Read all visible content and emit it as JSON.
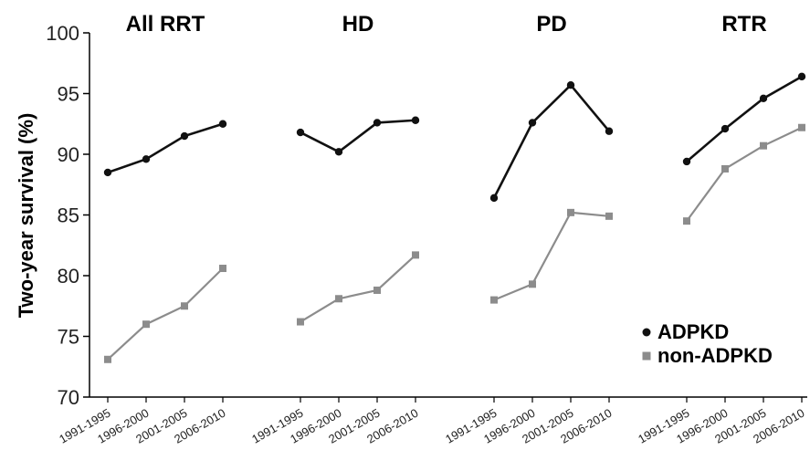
{
  "chart_data": {
    "type": "line",
    "ylabel": "Two-year survival (%)",
    "ylim": [
      70,
      100
    ],
    "yticks": [
      "70",
      "75",
      "80",
      "85",
      "90",
      "95",
      "100"
    ],
    "panels": [
      {
        "title": "All RRT",
        "categories": [
          "1991-1995",
          "1996-2000",
          "2001-2005",
          "2006-2010"
        ],
        "series": [
          {
            "name": "ADPKD",
            "values": [
              88.5,
              89.6,
              91.5,
              92.5
            ]
          },
          {
            "name": "non-ADPKD",
            "values": [
              73.1,
              76.0,
              77.5,
              80.6
            ]
          }
        ]
      },
      {
        "title": "HD",
        "categories": [
          "1991-1995",
          "1996-2000",
          "2001-2005",
          "2006-2010"
        ],
        "series": [
          {
            "name": "ADPKD",
            "values": [
              91.8,
              90.2,
              92.6,
              92.8
            ]
          },
          {
            "name": "non-ADPKD",
            "values": [
              76.2,
              78.1,
              78.8,
              81.7
            ]
          }
        ]
      },
      {
        "title": "PD",
        "categories": [
          "1991-1995",
          "1996-2000",
          "2001-2005",
          "2006-2010"
        ],
        "series": [
          {
            "name": "ADPKD",
            "values": [
              86.4,
              92.6,
              95.7,
              91.9
            ]
          },
          {
            "name": "non-ADPKD",
            "values": [
              78.0,
              79.3,
              85.2,
              84.9
            ]
          }
        ]
      },
      {
        "title": "RTR",
        "categories": [
          "1991-1995",
          "1996-2000",
          "2001-2005",
          "2006-2010"
        ],
        "series": [
          {
            "name": "ADPKD",
            "values": [
              89.4,
              92.1,
              94.6,
              96.4
            ]
          },
          {
            "name": "non-ADPKD",
            "values": [
              84.5,
              88.8,
              90.7,
              92.2
            ]
          }
        ]
      }
    ],
    "legend": {
      "position": "bottom-right",
      "entries": [
        {
          "name": "ADPKD",
          "color": "#111111",
          "marker": "circle"
        },
        {
          "name": "non-ADPKD",
          "color": "#8c8c8c",
          "marker": "square"
        }
      ]
    },
    "colors": {
      "adpkd": "#111111",
      "non_adpkd": "#8c8c8c"
    }
  }
}
